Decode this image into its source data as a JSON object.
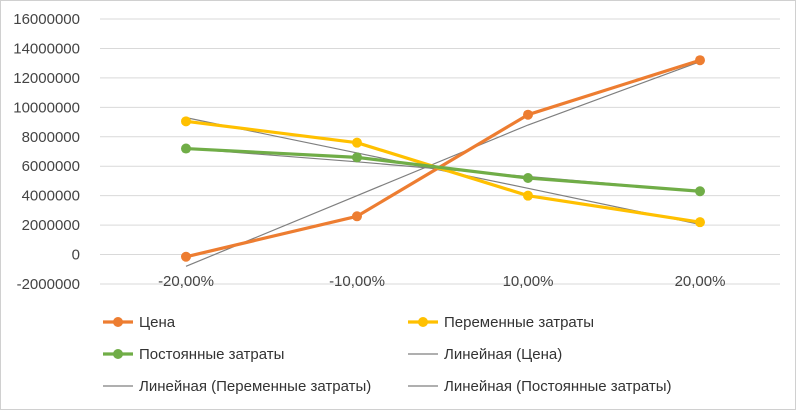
{
  "chart_data": {
    "type": "line",
    "categories": [
      "-20,00%",
      "-10,00%",
      "10,00%",
      "20,00%"
    ],
    "ylim": [
      -2000000,
      16000000
    ],
    "ytick_step": 2000000,
    "y_tick_labels": [
      "-2000000",
      "0",
      "2000000",
      "4000000",
      "6000000",
      "8000000",
      "10000000",
      "12000000",
      "14000000",
      "16000000"
    ],
    "grid": true,
    "legend_position": "bottom",
    "series": [
      {
        "name": "Цена",
        "color": "#ED7D31",
        "values": [
          -150000,
          2600000,
          9500000,
          13200000
        ]
      },
      {
        "name": "Переменные затраты",
        "color": "#FFC000",
        "values": [
          9050000,
          7600000,
          4000000,
          2200000
        ]
      },
      {
        "name": "Постоянные затраты",
        "color": "#70AD47",
        "values": [
          7200000,
          6600000,
          5200000,
          4300000
        ]
      }
    ],
    "trendlines": [
      {
        "name": "Линейная (Цена)",
        "color": "#7F7F7F",
        "values": [
          -800000,
          4000000,
          8800000,
          13100000
        ]
      },
      {
        "name": "Линейная (Переменные затраты)",
        "color": "#7F7F7F",
        "values": [
          9300000,
          6900000,
          4500000,
          2050000
        ]
      },
      {
        "name": "Линейная (Постоянные затраты)",
        "color": "#7F7F7F",
        "values": [
          7200000,
          6300000,
          5300000,
          4300000
        ]
      }
    ]
  }
}
